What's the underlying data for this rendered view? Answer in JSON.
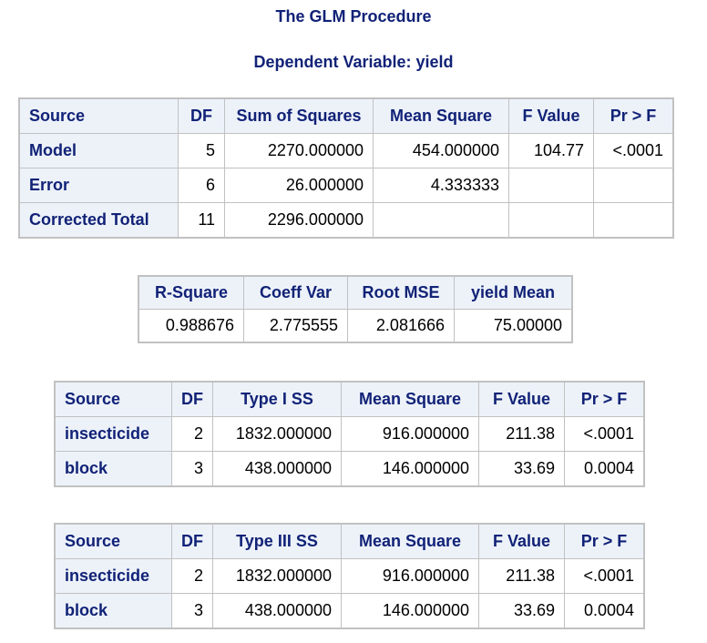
{
  "titles": {
    "procedure": "The GLM Procedure",
    "dependent": "Dependent Variable: yield"
  },
  "anova": {
    "headers": [
      "Source",
      "DF",
      "Sum of Squares",
      "Mean Square",
      "F Value",
      "Pr > F"
    ],
    "rows": [
      {
        "source": "Model",
        "df": "5",
        "ss": "2270.000000",
        "ms": "454.000000",
        "f": "104.77",
        "p": "<.0001"
      },
      {
        "source": "Error",
        "df": "6",
        "ss": "26.000000",
        "ms": "4.333333",
        "f": "",
        "p": ""
      },
      {
        "source": "Corrected Total",
        "df": "11",
        "ss": "2296.000000",
        "ms": "",
        "f": "",
        "p": ""
      }
    ]
  },
  "fit": {
    "headers": [
      "R-Square",
      "Coeff Var",
      "Root MSE",
      "yield Mean"
    ],
    "values": [
      "0.988676",
      "2.775555",
      "2.081666",
      "75.00000"
    ]
  },
  "type1": {
    "headers": [
      "Source",
      "DF",
      "Type I SS",
      "Mean Square",
      "F Value",
      "Pr > F"
    ],
    "rows": [
      {
        "source": "insecticide",
        "df": "2",
        "ss": "1832.000000",
        "ms": "916.000000",
        "f": "211.38",
        "p": "<.0001"
      },
      {
        "source": "block",
        "df": "3",
        "ss": "438.000000",
        "ms": "146.000000",
        "f": "33.69",
        "p": "0.0004"
      }
    ]
  },
  "type3": {
    "headers": [
      "Source",
      "DF",
      "Type III SS",
      "Mean Square",
      "F Value",
      "Pr > F"
    ],
    "rows": [
      {
        "source": "insecticide",
        "df": "2",
        "ss": "1832.000000",
        "ms": "916.000000",
        "f": "211.38",
        "p": "<.0001"
      },
      {
        "source": "block",
        "df": "3",
        "ss": "438.000000",
        "ms": "146.000000",
        "f": "33.69",
        "p": "0.0004"
      }
    ]
  }
}
